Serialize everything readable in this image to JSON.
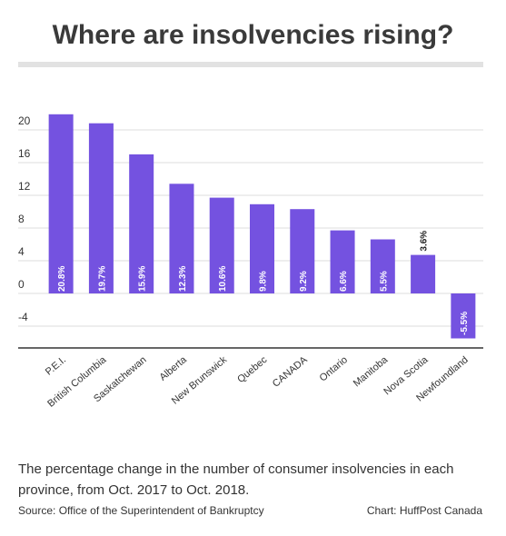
{
  "colors": {
    "bar": "#7452e0",
    "grid": "#dddddd",
    "axis": "#333333",
    "rule": "#e2e2e2"
  },
  "chart_data": {
    "type": "bar",
    "title": "Where are insolvencies rising?",
    "categories": [
      "P.E.I.",
      "British Columbia",
      "Saskatchewan",
      "Alberta",
      "New Brunswick",
      "Quebec",
      "CANADA",
      "Ontario",
      "Manitoba",
      "Nova Scotia",
      "Newfoundland"
    ],
    "values": [
      20.8,
      19.7,
      15.9,
      12.3,
      10.6,
      9.8,
      9.2,
      6.6,
      5.5,
      3.6,
      -5.5
    ],
    "value_labels": [
      "20.8%",
      "19.7%",
      "15.9%",
      "12.3%",
      "10.6%",
      "9.8%",
      "9.2%",
      "6.6%",
      "5.5%",
      "3.6%",
      "-5.5%"
    ],
    "yticks": [
      -4,
      0,
      4,
      8,
      12,
      16,
      20
    ],
    "ytick_labels": [
      "-4",
      "0",
      "4",
      "8",
      "12",
      "16",
      "20"
    ],
    "ylim": [
      -6.5,
      21.5
    ],
    "grid": true,
    "legend": "none"
  },
  "caption": "The percentage change in the number of consumer insolvencies in each province, from Oct. 2017 to Oct. 2018.",
  "source": "Source: Office of the Superintendent of Bankruptcy",
  "credit": "Chart: HuffPost Canada"
}
